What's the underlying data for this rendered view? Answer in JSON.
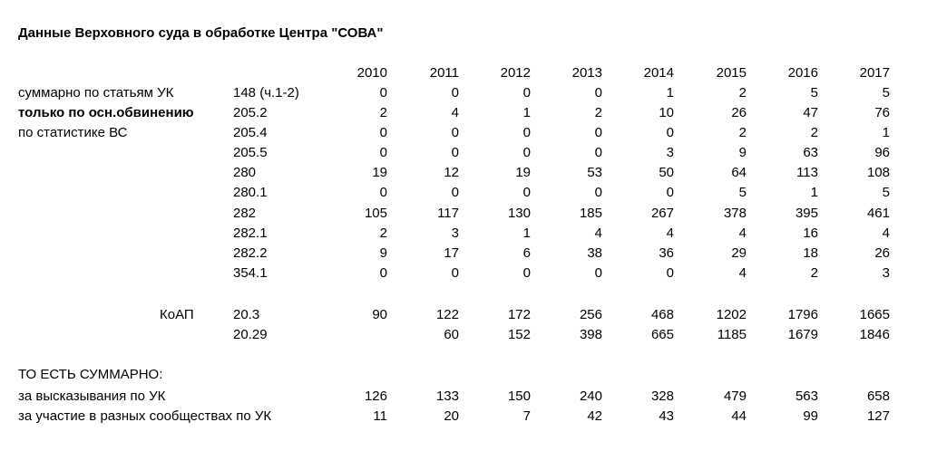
{
  "title": "Данные Верховного суда в обработке Центра \"СОВА\"",
  "years": [
    "2010",
    "2011",
    "2012",
    "2013",
    "2014",
    "2015",
    "2016",
    "2017"
  ],
  "uk_labels": [
    "суммарно по статьям УК",
    "только по осн.обвинению",
    "по статистике ВС"
  ],
  "uk_rows": [
    {
      "code": "148 (ч.1-2)",
      "values": [
        "0",
        "0",
        "0",
        "0",
        "1",
        "2",
        "5",
        "5"
      ]
    },
    {
      "code": "205.2",
      "values": [
        "2",
        "4",
        "1",
        "2",
        "10",
        "26",
        "47",
        "76"
      ]
    },
    {
      "code": "205.4",
      "values": [
        "0",
        "0",
        "0",
        "0",
        "0",
        "2",
        "2",
        "1"
      ]
    },
    {
      "code": "205.5",
      "values": [
        "0",
        "0",
        "0",
        "0",
        "3",
        "9",
        "63",
        "96"
      ]
    },
    {
      "code": "280",
      "values": [
        "19",
        "12",
        "19",
        "53",
        "50",
        "64",
        "113",
        "108"
      ]
    },
    {
      "code": "280.1",
      "values": [
        "0",
        "0",
        "0",
        "0",
        "0",
        "5",
        "1",
        "5"
      ]
    },
    {
      "code": "282",
      "values": [
        "105",
        "117",
        "130",
        "185",
        "267",
        "378",
        "395",
        "461"
      ]
    },
    {
      "code": "282.1",
      "values": [
        "2",
        "3",
        "1",
        "4",
        "4",
        "4",
        "16",
        "4"
      ]
    },
    {
      "code": "282.2",
      "values": [
        "9",
        "17",
        "6",
        "38",
        "36",
        "29",
        "18",
        "26"
      ]
    },
    {
      "code": "354.1",
      "values": [
        "0",
        "0",
        "0",
        "0",
        "0",
        "4",
        "2",
        "3"
      ]
    }
  ],
  "koap_label": "КоАП",
  "koap_rows": [
    {
      "code": "20.3",
      "values": [
        "90",
        "122",
        "172",
        "256",
        "468",
        "1202",
        "1796",
        "1665"
      ]
    },
    {
      "code": "20.29",
      "values": [
        "",
        "60",
        "152",
        "398",
        "665",
        "1185",
        "1679",
        "1846"
      ]
    }
  ],
  "summary_heading": "ТО ЕСТЬ СУММАРНО:",
  "summary_rows": [
    {
      "label": "за высказывания по УК",
      "values": [
        "126",
        "133",
        "150",
        "240",
        "328",
        "479",
        "563",
        "658"
      ]
    },
    {
      "label": "за участие в разных сообществах по УК",
      "values": [
        "11",
        "20",
        "7",
        "42",
        "43",
        "44",
        "99",
        "127"
      ]
    }
  ]
}
